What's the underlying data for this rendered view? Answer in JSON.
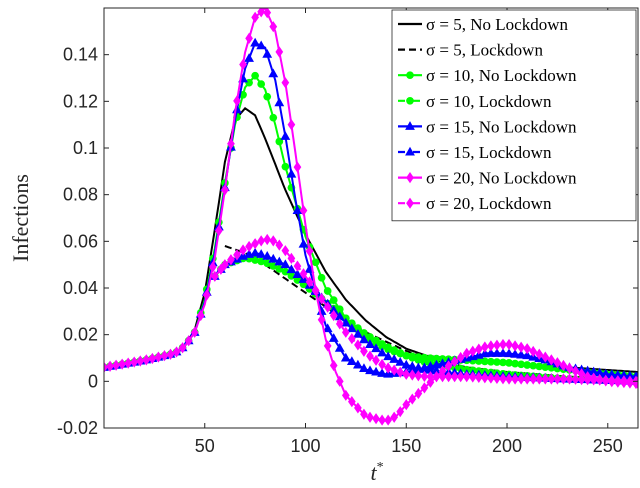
{
  "chart_data": {
    "type": "line",
    "title": "",
    "xlabel": "t",
    "xlabel_sup": "*",
    "ylabel": "Infections",
    "xlim": [
      0,
      265
    ],
    "ylim": [
      -0.02,
      0.16
    ],
    "x_ticks": [
      50,
      100,
      150,
      200,
      250
    ],
    "x_tick_labels": [
      "50",
      "100",
      "150",
      "200",
      "250"
    ],
    "y_ticks": [
      -0.02,
      0,
      0.02,
      0.04,
      0.06,
      0.08,
      0.1,
      0.12,
      0.14
    ],
    "y_tick_labels": [
      "-0.02",
      "0",
      "0.02",
      "0.04",
      "0.06",
      "0.08",
      "0.1",
      "0.12",
      "0.14"
    ],
    "grid": false,
    "legend_position": "top-right",
    "series": [
      {
        "name": "σ = 5, No Lockdown",
        "color": "#000000",
        "dash": "solid",
        "marker": "none",
        "points": [
          [
            0,
            0.006
          ],
          [
            20,
            0.009
          ],
          [
            35,
            0.012
          ],
          [
            40,
            0.015
          ],
          [
            45,
            0.022
          ],
          [
            50,
            0.038
          ],
          [
            55,
            0.065
          ],
          [
            60,
            0.094
          ],
          [
            65,
            0.112
          ],
          [
            70,
            0.117
          ],
          [
            75,
            0.114
          ],
          [
            80,
            0.104
          ],
          [
            90,
            0.082
          ],
          [
            100,
            0.063
          ],
          [
            110,
            0.047
          ],
          [
            120,
            0.035
          ],
          [
            130,
            0.026
          ],
          [
            140,
            0.019
          ],
          [
            150,
            0.014
          ],
          [
            160,
            0.011
          ],
          [
            180,
            0.009
          ],
          [
            200,
            0.008
          ],
          [
            230,
            0.006
          ],
          [
            265,
            0.004
          ]
        ]
      },
      {
        "name": "σ = 5, Lockdown",
        "color": "#000000",
        "dash": "dash",
        "marker": "none",
        "points": [
          [
            60,
            0.058
          ],
          [
            70,
            0.055
          ],
          [
            80,
            0.05
          ],
          [
            90,
            0.044
          ],
          [
            100,
            0.038
          ],
          [
            110,
            0.032
          ],
          [
            120,
            0.026
          ],
          [
            130,
            0.021
          ],
          [
            140,
            0.017
          ],
          [
            150,
            0.013
          ],
          [
            160,
            0.01
          ],
          [
            180,
            0.006
          ],
          [
            200,
            0.004
          ],
          [
            230,
            0.002
          ],
          [
            265,
            0.001
          ]
        ]
      },
      {
        "name": "σ = 10, No Lockdown",
        "color": "#00ff00",
        "dash": "solid",
        "marker": "circle",
        "points": [
          [
            0,
            0.006
          ],
          [
            20,
            0.009
          ],
          [
            35,
            0.012
          ],
          [
            40,
            0.015
          ],
          [
            45,
            0.021
          ],
          [
            50,
            0.035
          ],
          [
            55,
            0.057
          ],
          [
            60,
            0.085
          ],
          [
            65,
            0.11
          ],
          [
            70,
            0.126
          ],
          [
            75,
            0.131
          ],
          [
            80,
            0.125
          ],
          [
            85,
            0.11
          ],
          [
            90,
            0.092
          ],
          [
            100,
            0.062
          ],
          [
            110,
            0.04
          ],
          [
            120,
            0.027
          ],
          [
            130,
            0.019
          ],
          [
            140,
            0.014
          ],
          [
            150,
            0.011
          ],
          [
            160,
            0.01
          ],
          [
            180,
            0.009
          ],
          [
            200,
            0.008
          ],
          [
            220,
            0.006
          ],
          [
            240,
            0.004
          ],
          [
            265,
            0.002
          ]
        ]
      },
      {
        "name": "σ = 10, Lockdown",
        "color": "#00ff00",
        "dash": "dashdot",
        "marker": "circle",
        "points": [
          [
            55,
            0.045
          ],
          [
            60,
            0.05
          ],
          [
            70,
            0.053
          ],
          [
            80,
            0.051
          ],
          [
            90,
            0.047
          ],
          [
            100,
            0.041
          ],
          [
            110,
            0.034
          ],
          [
            120,
            0.027
          ],
          [
            130,
            0.02
          ],
          [
            140,
            0.015
          ],
          [
            150,
            0.011
          ],
          [
            160,
            0.008
          ],
          [
            180,
            0.005
          ],
          [
            200,
            0.003
          ],
          [
            230,
            0.001
          ],
          [
            265,
            0.0
          ]
        ]
      },
      {
        "name": "σ = 15, No Lockdown",
        "color": "#0000ff",
        "dash": "solid",
        "marker": "triangle",
        "points": [
          [
            0,
            0.006
          ],
          [
            20,
            0.009
          ],
          [
            35,
            0.012
          ],
          [
            40,
            0.015
          ],
          [
            45,
            0.021
          ],
          [
            50,
            0.034
          ],
          [
            55,
            0.055
          ],
          [
            60,
            0.083
          ],
          [
            65,
            0.112
          ],
          [
            70,
            0.134
          ],
          [
            75,
            0.145
          ],
          [
            80,
            0.143
          ],
          [
            85,
            0.129
          ],
          [
            90,
            0.105
          ],
          [
            95,
            0.078
          ],
          [
            100,
            0.054
          ],
          [
            110,
            0.024
          ],
          [
            120,
            0.01
          ],
          [
            130,
            0.005
          ],
          [
            140,
            0.003
          ],
          [
            150,
            0.004
          ],
          [
            160,
            0.006
          ],
          [
            170,
            0.008
          ],
          [
            180,
            0.01
          ],
          [
            190,
            0.012
          ],
          [
            200,
            0.012
          ],
          [
            210,
            0.011
          ],
          [
            220,
            0.009
          ],
          [
            230,
            0.006
          ],
          [
            250,
            0.003
          ],
          [
            265,
            0.002
          ]
        ]
      },
      {
        "name": "σ = 15, Lockdown",
        "color": "#0000ff",
        "dash": "dashdot",
        "marker": "triangle",
        "points": [
          [
            55,
            0.045
          ],
          [
            60,
            0.05
          ],
          [
            70,
            0.054
          ],
          [
            75,
            0.055
          ],
          [
            80,
            0.054
          ],
          [
            90,
            0.05
          ],
          [
            100,
            0.043
          ],
          [
            110,
            0.034
          ],
          [
            120,
            0.025
          ],
          [
            130,
            0.017
          ],
          [
            140,
            0.011
          ],
          [
            150,
            0.007
          ],
          [
            160,
            0.005
          ],
          [
            180,
            0.003
          ],
          [
            200,
            0.002
          ],
          [
            230,
            0.001
          ],
          [
            265,
            0.0
          ]
        ]
      },
      {
        "name": "σ = 20, No Lockdown",
        "color": "#ff00ff",
        "dash": "solid",
        "marker": "diamond",
        "points": [
          [
            0,
            0.006
          ],
          [
            20,
            0.009
          ],
          [
            35,
            0.012
          ],
          [
            40,
            0.015
          ],
          [
            45,
            0.021
          ],
          [
            50,
            0.033
          ],
          [
            55,
            0.053
          ],
          [
            60,
            0.082
          ],
          [
            65,
            0.115
          ],
          [
            70,
            0.141
          ],
          [
            75,
            0.156
          ],
          [
            80,
            0.16
          ],
          [
            85,
            0.15
          ],
          [
            90,
            0.128
          ],
          [
            95,
            0.098
          ],
          [
            100,
            0.067
          ],
          [
            105,
            0.039
          ],
          [
            110,
            0.018
          ],
          [
            115,
            0.004
          ],
          [
            120,
            -0.006
          ],
          [
            130,
            -0.015
          ],
          [
            140,
            -0.017
          ],
          [
            145,
            -0.015
          ],
          [
            150,
            -0.01
          ],
          [
            160,
            -0.002
          ],
          [
            170,
            0.006
          ],
          [
            180,
            0.012
          ],
          [
            190,
            0.015
          ],
          [
            200,
            0.016
          ],
          [
            210,
            0.014
          ],
          [
            220,
            0.01
          ],
          [
            230,
            0.006
          ],
          [
            240,
            0.002
          ],
          [
            250,
            0.0
          ],
          [
            265,
            -0.001
          ]
        ]
      },
      {
        "name": "σ = 20, Lockdown",
        "color": "#ff00ff",
        "dash": "dashdot",
        "marker": "diamond",
        "points": [
          [
            55,
            0.045
          ],
          [
            60,
            0.05
          ],
          [
            70,
            0.057
          ],
          [
            80,
            0.061
          ],
          [
            85,
            0.06
          ],
          [
            90,
            0.056
          ],
          [
            100,
            0.045
          ],
          [
            110,
            0.033
          ],
          [
            120,
            0.021
          ],
          [
            130,
            0.012
          ],
          [
            140,
            0.006
          ],
          [
            150,
            0.003
          ],
          [
            160,
            0.002
          ],
          [
            180,
            0.002
          ],
          [
            200,
            0.001
          ],
          [
            230,
            0.001
          ],
          [
            265,
            0.0
          ]
        ]
      }
    ]
  }
}
